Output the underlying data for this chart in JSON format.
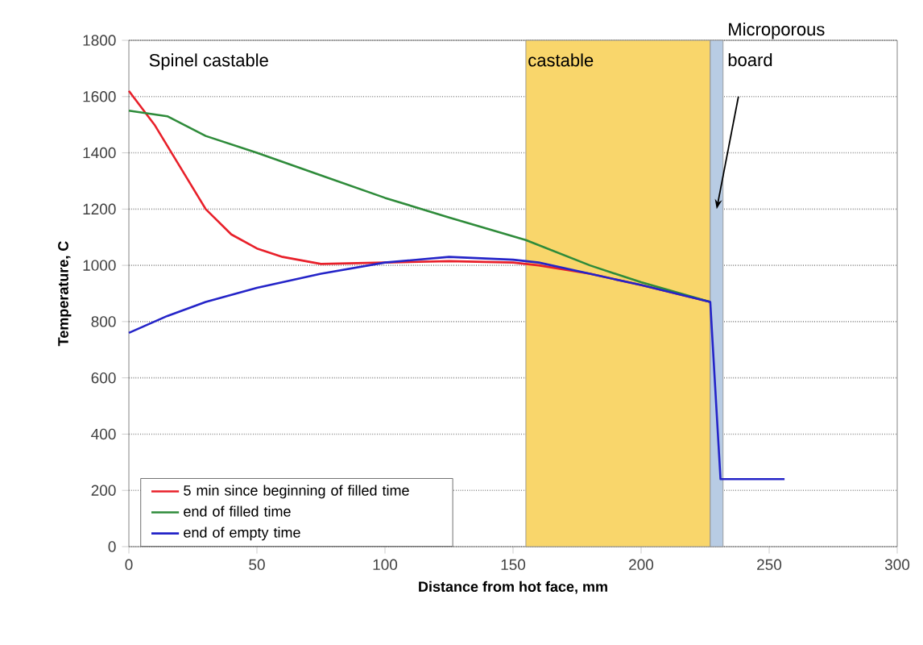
{
  "chart_data": {
    "type": "line",
    "xlabel": "Distance from hot face, mm",
    "ylabel": "Temperature, C",
    "xlim": [
      0,
      300
    ],
    "ylim": [
      0,
      1800
    ],
    "xticks": [
      0,
      50,
      100,
      150,
      200,
      250,
      300
    ],
    "yticks": [
      0,
      200,
      400,
      600,
      800,
      1000,
      1200,
      1400,
      1600,
      1800
    ],
    "grid": "y",
    "legend": "bottom left",
    "marker": "none",
    "line_style": "solid",
    "annotations": [
      "Spinel castable"
    ],
    "bands": [
      {
        "axis": "x",
        "from": 155,
        "to": 227,
        "label": "castable",
        "color": "#f9d66b"
      },
      {
        "axis": "x",
        "from": 227,
        "to": 232,
        "label": "Microporous board",
        "color": "#b8cce4"
      }
    ],
    "series": [
      {
        "name": "5 min since beginning of filled time",
        "color": "#e8202a",
        "x": [
          0,
          10,
          20,
          30,
          40,
          50,
          60,
          75,
          100,
          125,
          150,
          160,
          180,
          200,
          227
        ],
        "values": [
          1620,
          1500,
          1350,
          1200,
          1110,
          1060,
          1030,
          1005,
          1010,
          1015,
          1010,
          1000,
          970,
          930,
          870
        ]
      },
      {
        "name": "end of filled time",
        "color": "#2e8b3a",
        "x": [
          0,
          15,
          30,
          50,
          75,
          100,
          125,
          155,
          180,
          200,
          227
        ],
        "values": [
          1550,
          1530,
          1460,
          1400,
          1320,
          1240,
          1170,
          1090,
          1000,
          940,
          870
        ]
      },
      {
        "name": "end of empty time",
        "color": "#2424c8",
        "x": [
          0,
          15,
          30,
          50,
          75,
          100,
          125,
          150,
          160,
          180,
          200,
          227,
          231,
          256
        ],
        "values": [
          760,
          820,
          870,
          920,
          970,
          1010,
          1030,
          1020,
          1010,
          970,
          930,
          870,
          240,
          240
        ]
      }
    ]
  }
}
